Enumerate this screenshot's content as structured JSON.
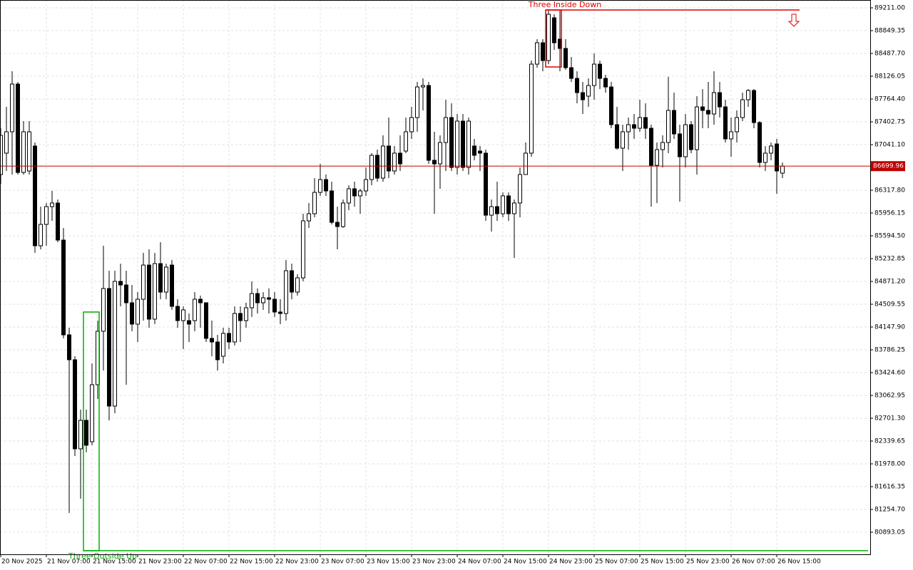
{
  "chart_data": {
    "type": "candlestick",
    "categories": [
      "20 Nov 2025",
      null,
      null,
      null,
      null,
      null,
      null,
      null,
      "21 Nov 07:00",
      null,
      null,
      null,
      null,
      null,
      null,
      null,
      "21 Nov 15:00",
      null,
      null,
      null,
      null,
      null,
      null,
      null,
      "21 Nov 23:00",
      null,
      null,
      null,
      null,
      null,
      null,
      null,
      "22 Nov 07:00",
      null,
      null,
      null,
      null,
      null,
      null,
      null,
      "22 Nov 15:00",
      null,
      null,
      null,
      null,
      null,
      null,
      null,
      "22 Nov 23:00",
      null,
      null,
      null,
      null,
      null,
      null,
      null,
      "23 Nov 07:00",
      null,
      null,
      null,
      null,
      null,
      null,
      null,
      "23 Nov 15:00",
      null,
      null,
      null,
      null,
      null,
      null,
      null,
      "23 Nov 23:00",
      null,
      null,
      null,
      null,
      null,
      null,
      null,
      "24 Nov 07:00",
      null,
      null,
      null,
      null,
      null,
      null,
      null,
      "24 Nov 15:00",
      null,
      null,
      null,
      null,
      null,
      null,
      null,
      "24 Nov 23:00",
      null,
      null,
      null,
      null,
      null,
      null,
      null,
      "25 Nov 07:00",
      null,
      null,
      null,
      null,
      null,
      null,
      null,
      "25 Nov 15:00",
      null,
      null,
      null,
      null,
      null,
      null,
      null,
      "25 Nov 23:00",
      null,
      null,
      null,
      null,
      null,
      null,
      null,
      "26 Nov 07:00",
      null,
      null,
      null,
      null,
      null,
      null,
      null,
      "26 Nov 15:00",
      null
    ],
    "open": [
      86567,
      86906,
      87245,
      88002,
      86600,
      86623,
      87019,
      85437,
      85776,
      86058,
      86115,
      85527,
      84024,
      83629,
      82216,
      82668,
      82329,
      83233,
      84081,
      84759,
      82894,
      84872,
      84815,
      84533,
      84194,
      84589,
      85131,
      84273,
      85154,
      84702,
      85131,
      84476,
      84250,
      84250,
      84250,
      84589,
      84533,
      83968,
      83911,
      83685,
      84047,
      83911,
      84363,
      84250,
      84453,
      84679,
      84533,
      84612,
      84589,
      84386,
      84363,
      85041,
      84702,
      84928,
      85832,
      85945,
      86284,
      86487,
      86307,
      85809,
      85742,
      86115,
      86341,
      86228,
      86307,
      86487,
      86872,
      86510,
      87019,
      86623,
      86906,
      86939,
      87245,
      87471,
      87956,
      87979,
      86793,
      86736,
      87075,
      87471,
      86680,
      87414,
      86680,
      87019,
      86939,
      86906,
      85922,
      86058,
      85945,
      86228,
      85945,
      86115,
      86567,
      86906,
      88318,
      88657,
      88375,
      89053,
      88714,
      88567,
      88262,
      88092,
      87866,
      87810,
      87979,
      88318,
      88092,
      87956,
      87358,
      86985,
      87245,
      87358,
      87301,
      87471,
      87301,
      86713,
      86962,
      87075,
      87584,
      87211,
      86849,
      87358,
      86962,
      87640,
      87584,
      87527,
      87866,
      87640,
      87132,
      87245,
      87471,
      87753,
      87900,
      87391,
      86759,
      86906,
      87052,
      86589
    ],
    "high": [
      87301,
      87640,
      88205,
      88036,
      87414,
      87414,
      87075,
      86058,
      86115,
      86307,
      86171,
      85719,
      84137,
      83685,
      82838,
      82838,
      83572,
      84250,
      85437,
      85041,
      85041,
      85154,
      85041,
      84815,
      84702,
      85324,
      85380,
      85324,
      85493,
      85154,
      85211,
      84589,
      84476,
      84363,
      84702,
      84646,
      84533,
      84250,
      84024,
      84137,
      84137,
      84476,
      84476,
      84533,
      84872,
      84759,
      84702,
      84759,
      84702,
      84589,
      85211,
      85154,
      84985,
      85945,
      86115,
      86510,
      86736,
      86567,
      86454,
      86058,
      86171,
      86397,
      86454,
      86341,
      86680,
      86906,
      86962,
      87188,
      87471,
      87019,
      87188,
      87471,
      87640,
      88036,
      88092,
      88036,
      87245,
      87188,
      87753,
      87697,
      87527,
      87527,
      87471,
      87132,
      87019,
      86962,
      86171,
      86454,
      86284,
      86284,
      86171,
      86680,
      87075,
      88375,
      88714,
      88714,
      89166,
      89109,
      89166,
      88714,
      88431,
      88205,
      88036,
      88092,
      88488,
      88375,
      88149,
      88036,
      87640,
      87358,
      87471,
      87527,
      87753,
      87697,
      87358,
      87075,
      87188,
      88115,
      87866,
      87358,
      87527,
      87414,
      87810,
      87923,
      88036,
      88205,
      88036,
      87753,
      87471,
      87584,
      87866,
      87923,
      87923,
      87414,
      87019,
      87075,
      87132,
      86759
    ],
    "low": [
      86420,
      86623,
      86567,
      86567,
      86567,
      86567,
      85324,
      85380,
      85437,
      85832,
      85493,
      83968,
      81199,
      82103,
      81425,
      82160,
      82273,
      83007,
      83459,
      82668,
      82781,
      84476,
      83233,
      84081,
      83911,
      84250,
      84137,
      84194,
      84589,
      84589,
      84420,
      84137,
      83798,
      83911,
      84081,
      84137,
      83911,
      83685,
      83459,
      83572,
      83798,
      83855,
      83911,
      84137,
      84307,
      84363,
      84420,
      84363,
      84307,
      84194,
      84250,
      84589,
      84646,
      84872,
      85719,
      85889,
      86228,
      86228,
      85776,
      85380,
      85719,
      86002,
      86058,
      85945,
      86228,
      86397,
      86454,
      86454,
      86510,
      86567,
      86623,
      86906,
      87132,
      87245,
      87584,
      86736,
      85945,
      86341,
      86623,
      86623,
      86567,
      86623,
      86567,
      86793,
      86623,
      85832,
      85662,
      85832,
      85889,
      85832,
      85244,
      85889,
      86567,
      86849,
      88262,
      88205,
      88318,
      88544,
      88205,
      88228,
      88036,
      87697,
      87527,
      87640,
      87753,
      87923,
      87866,
      87301,
      86962,
      86623,
      86962,
      87132,
      87245,
      87132,
      86058,
      86115,
      86680,
      86906,
      87132,
      86137,
      86680,
      86906,
      86567,
      87301,
      87301,
      87358,
      87471,
      87075,
      86849,
      87075,
      87414,
      87640,
      87301,
      86680,
      86623,
      86793,
      86261,
      86510
    ],
    "close": [
      87188,
      87245,
      88002,
      86600,
      87245,
      87245,
      85437,
      85776,
      86058,
      86115,
      85527,
      84024,
      83629,
      82216,
      82668,
      82273,
      83233,
      84081,
      84759,
      82894,
      84872,
      84815,
      84533,
      84194,
      84589,
      85131,
      84273,
      85154,
      84702,
      85098,
      84476,
      84250,
      84420,
      84194,
      84589,
      84533,
      83968,
      83911,
      83629,
      84047,
      83911,
      84363,
      84250,
      84453,
      84679,
      84533,
      84612,
      84589,
      84386,
      84363,
      85041,
      84702,
      84928,
      85832,
      85945,
      86284,
      86487,
      86307,
      85809,
      85742,
      86115,
      86341,
      86228,
      86307,
      86487,
      86872,
      86510,
      87019,
      86623,
      86906,
      86736,
      87245,
      87471,
      87956,
      87979,
      86793,
      86736,
      87075,
      87471,
      86680,
      87414,
      86680,
      87414,
      86872,
      86906,
      85922,
      86058,
      85945,
      86228,
      85945,
      86115,
      86567,
      86906,
      88318,
      88657,
      88375,
      89109,
      88657,
      88567,
      88262,
      88092,
      87866,
      87753,
      87979,
      88318,
      88092,
      87956,
      87358,
      86985,
      87245,
      87358,
      87301,
      87471,
      87301,
      86713,
      86962,
      87075,
      87584,
      87211,
      86849,
      87358,
      86962,
      87640,
      87584,
      87527,
      87866,
      87640,
      87132,
      87245,
      87471,
      87753,
      87900,
      87391,
      86759,
      86906,
      87019,
      86623,
      86699.96
    ],
    "up_color": "#ffffff",
    "down_color": "#000000",
    "ylim": [
      80542.7,
      89335.3
    ],
    "yticks": [
      {
        "value": 89211.0,
        "label": "89211.00"
      },
      88849.35,
      {
        "value": 88487.7,
        "label": "88487.70"
      },
      88126.05,
      {
        "value": 87764.4,
        "label": "87764.40"
      },
      87402.75,
      {
        "value": 87041.1,
        "label": "87041.10"
      },
      {
        "value": 86317.8,
        "label": "86317.80"
      },
      85956.15,
      {
        "value": 85594.5,
        "label": "85594.50"
      },
      85232.85,
      {
        "value": 84871.2,
        "label": "84871.20"
      },
      84509.55,
      {
        "value": 84147.9,
        "label": "84147.90"
      },
      83786.25,
      {
        "value": 83424.6,
        "label": "83424.60"
      },
      83062.95,
      {
        "value": 82701.3,
        "label": "82701.30"
      },
      82339.65,
      {
        "value": 81978.0,
        "label": "81978.00"
      },
      81616.35,
      {
        "value": 81254.7,
        "label": "81254.70"
      },
      80893.05
    ],
    "grid": true,
    "last_price": 86699.96,
    "last_price_color": "#c00000",
    "patterns": [
      {
        "name": "Three Inside Down",
        "color": "#e00000",
        "high": 89177,
        "low": 88273,
        "start": 96,
        "end": 98,
        "line_end": 140,
        "direction": "down"
      },
      {
        "name": "Three Outside Up",
        "color": "#00b000",
        "high": 84386,
        "low": 80600,
        "start": 15,
        "end": 17,
        "line_end": 152,
        "direction": "up"
      }
    ]
  }
}
